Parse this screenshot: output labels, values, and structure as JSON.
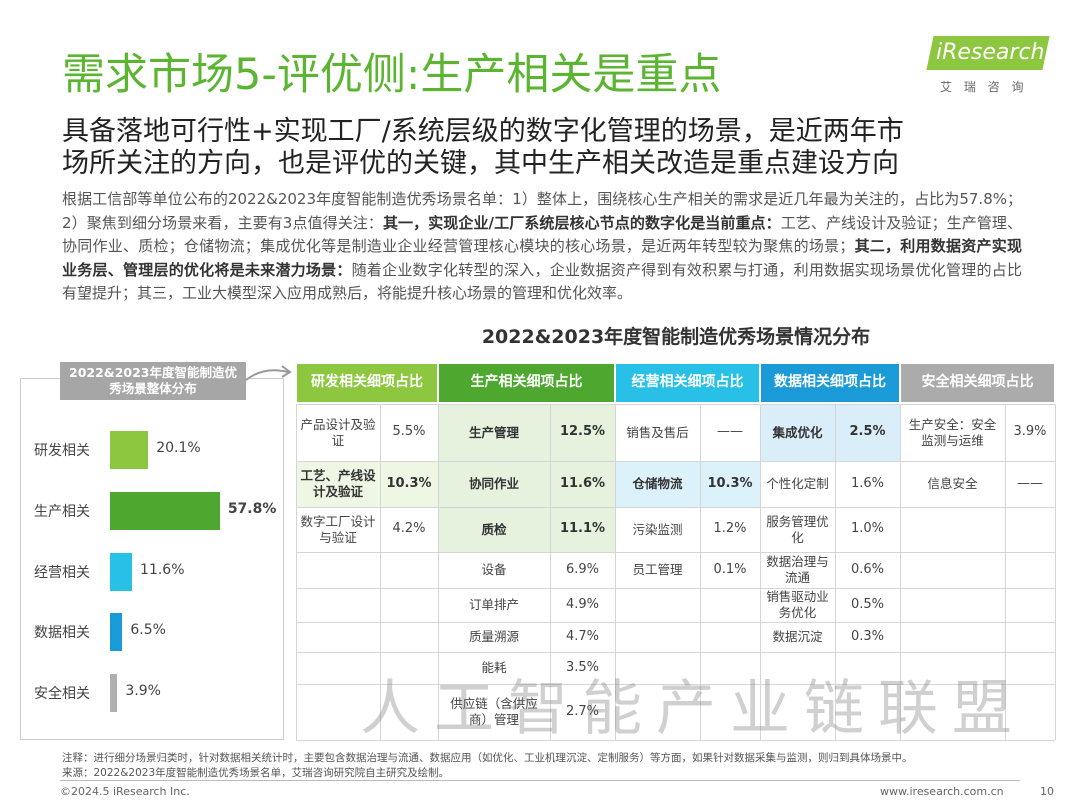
{
  "header": {
    "title": "需求市场5-评优侧:生产相关是重点",
    "logo": "iResearch",
    "logo_sub": "艾 瑞 咨 询",
    "subtitle": [
      "具备落地可行性+实现工厂/系统层级的数字化管理的场景，是近两年市",
      "场所关注的方向，也是评优的关键，其中生产相关改造是重点建设方向"
    ]
  },
  "paragraph": [
    {
      "text": "根据工信部等单位公布的2022&2023年度智能制造优秀场景名单：1）整体上，围绕核心生产相关的需求是近几年最为关注的，占比为57.8%；2）聚焦到细分场景来看，主要有3点值得关注：",
      "bold": false
    },
    {
      "text": "其一，实现企业/工厂系统层核心节点的数字化是当前重点：",
      "bold": true
    },
    {
      "text": "工艺、产线设计及验证；生产管理、协同作业、质检；仓储物流；集成优化等是制造业企业经营管理核心模块的核心场景，是近两年转型较为聚焦的场景；",
      "bold": false
    },
    {
      "text": "其二，利用数据资产实现业务层、管理层的优化将是未来潜力场景：",
      "bold": true
    },
    {
      "text": "随着企业数字化转型的深入，企业数据资产得到有效积累与打通，利用数据实现场景优化管理的占比有望提升；其三，工业大模型深入应用成熟后，将能提升核心场景的管理和优化效率。",
      "bold": false
    }
  ],
  "section_title": "2022&2023年度智能制造优秀场景情况分布",
  "chart_data": {
    "type": "bar",
    "orientation": "horizontal",
    "title": "2022&2023年度智能制造优秀场景整体分布",
    "categories": [
      "研发相关",
      "生产相关",
      "经营相关",
      "数据相关",
      "安全相关"
    ],
    "values": [
      20.1,
      57.8,
      11.6,
      6.5,
      3.9
    ],
    "value_labels": [
      "20.1%",
      "57.8%",
      "11.6%",
      "6.5%",
      "3.9%"
    ],
    "colors": [
      "#8dc63f",
      "#4ea72e",
      "#29c0e8",
      "#1a9ad6",
      "#b0b0b0"
    ],
    "xlim": [
      0,
      60
    ]
  },
  "table": {
    "groups": [
      {
        "header": "研发相关细项占比",
        "color": "#8dc63f",
        "highlight": "#eef6e4",
        "items": [
          {
            "name": "产品设计及验证",
            "value": "5.5%",
            "bold": false
          },
          {
            "name": "工艺、产线设计及验证",
            "value": "10.3%",
            "bold": true
          },
          {
            "name": "数字工厂设计与验证",
            "value": "4.2%",
            "bold": false
          }
        ]
      },
      {
        "header": "生产相关细项占比",
        "color": "#4ea72e",
        "highlight": "#e6f2dd",
        "items": [
          {
            "name": "生产管理",
            "value": "12.5%",
            "bold": true
          },
          {
            "name": "协同作业",
            "value": "11.6%",
            "bold": true
          },
          {
            "name": "质检",
            "value": "11.1%",
            "bold": true
          },
          {
            "name": "设备",
            "value": "6.9%",
            "bold": false
          },
          {
            "name": "订单排产",
            "value": "4.9%",
            "bold": false
          },
          {
            "name": "质量溯源",
            "value": "4.7%",
            "bold": false
          },
          {
            "name": "能耗",
            "value": "3.5%",
            "bold": false
          },
          {
            "name": "供应链（含供应商）管理",
            "value": "2.7%",
            "bold": false
          }
        ]
      },
      {
        "header": "经营相关细项占比",
        "color": "#29c0e8",
        "highlight": "#dcf2fb",
        "items": [
          {
            "name": "销售及售后",
            "value": "——",
            "bold": false
          },
          {
            "name": "仓储物流",
            "value": "10.3%",
            "bold": true
          },
          {
            "name": "污染监测",
            "value": "1.2%",
            "bold": false
          },
          {
            "name": "员工管理",
            "value": "0.1%",
            "bold": false
          }
        ]
      },
      {
        "header": "数据相关细项占比",
        "color": "#1a9ad6",
        "highlight": "#d9eef9",
        "items": [
          {
            "name": "集成优化",
            "value": "2.5%",
            "bold": true
          },
          {
            "name": "个性化定制",
            "value": "1.6%",
            "bold": false
          },
          {
            "name": "服务管理优化",
            "value": "1.0%",
            "bold": false
          },
          {
            "name": "数据治理与流通",
            "value": "0.6%",
            "bold": false
          },
          {
            "name": "销售驱动业务优化",
            "value": "0.5%",
            "bold": false
          },
          {
            "name": "数据沉淀",
            "value": "0.3%",
            "bold": false
          }
        ]
      },
      {
        "header": "安全相关细项占比",
        "color": "#ababab",
        "highlight": "#f0f0f0",
        "items": [
          {
            "name": "生产安全：安全监测与运维",
            "value": "3.9%",
            "bold": false
          },
          {
            "name": "信息安全",
            "value": "——",
            "bold": false
          }
        ]
      }
    ]
  },
  "watermark": "人工智能产业链联盟",
  "footer": {
    "note": "注释：进行细分场景归类时，针对数据相关统计时，主要包含数据治理与流通、数据应用（如优化、工业机理沉淀、定制服务）等方面，如果针对数据采集与监测，则归到具体场景中。",
    "source": "来源：2022&2023年度智能制造优秀场景名单，艾瑞咨询研究院自主研究及绘制。",
    "copyright": "©2024.5 iResearch Inc.",
    "website": "www.iresearch.com.cn",
    "page": "10"
  }
}
